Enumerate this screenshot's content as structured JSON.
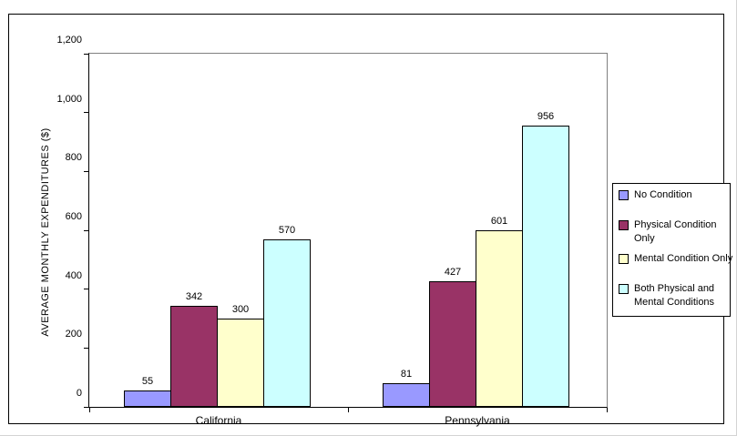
{
  "chart_data": {
    "type": "bar",
    "title": "",
    "categories": [
      "California",
      "Pennsylvania"
    ],
    "series": [
      {
        "name": "No Condition",
        "legend_lines": [
          "No Condition"
        ],
        "color": "#9999FF",
        "values": [
          55,
          81
        ]
      },
      {
        "name": "Physical Condition Only",
        "legend_lines": [
          "Physical Condition",
          "Only"
        ],
        "color": "#993366",
        "values": [
          342,
          427
        ]
      },
      {
        "name": "Mental Condition Only",
        "legend_lines": [
          "Mental Condition Only"
        ],
        "color": "#FFFFCC",
        "values": [
          300,
          601
        ]
      },
      {
        "name": "Both Physical and Mental Conditions",
        "legend_lines": [
          "Both Physical and",
          "Mental Conditions"
        ],
        "color": "#CCFFFF",
        "values": [
          570,
          956
        ]
      }
    ],
    "xlabel": "",
    "ylabel": "AVERAGE MONTHLY EXPENDITURES ($)",
    "ylim": [
      0,
      1200
    ],
    "yticks": [
      0,
      200,
      400,
      600,
      800,
      1000,
      1200
    ],
    "ytick_labels": [
      "0",
      "200",
      "400",
      "600",
      "800",
      "1,000",
      "1,200"
    ],
    "bar_value_labels": [
      "55",
      "342",
      "300",
      "570",
      "81",
      "427",
      "601",
      "956"
    ],
    "legend_position": "right",
    "grid": false,
    "colors": {
      "bar_border": "#000000",
      "axis": "#000000",
      "plot_border": "#808080",
      "background": "#FFFFFF"
    }
  }
}
